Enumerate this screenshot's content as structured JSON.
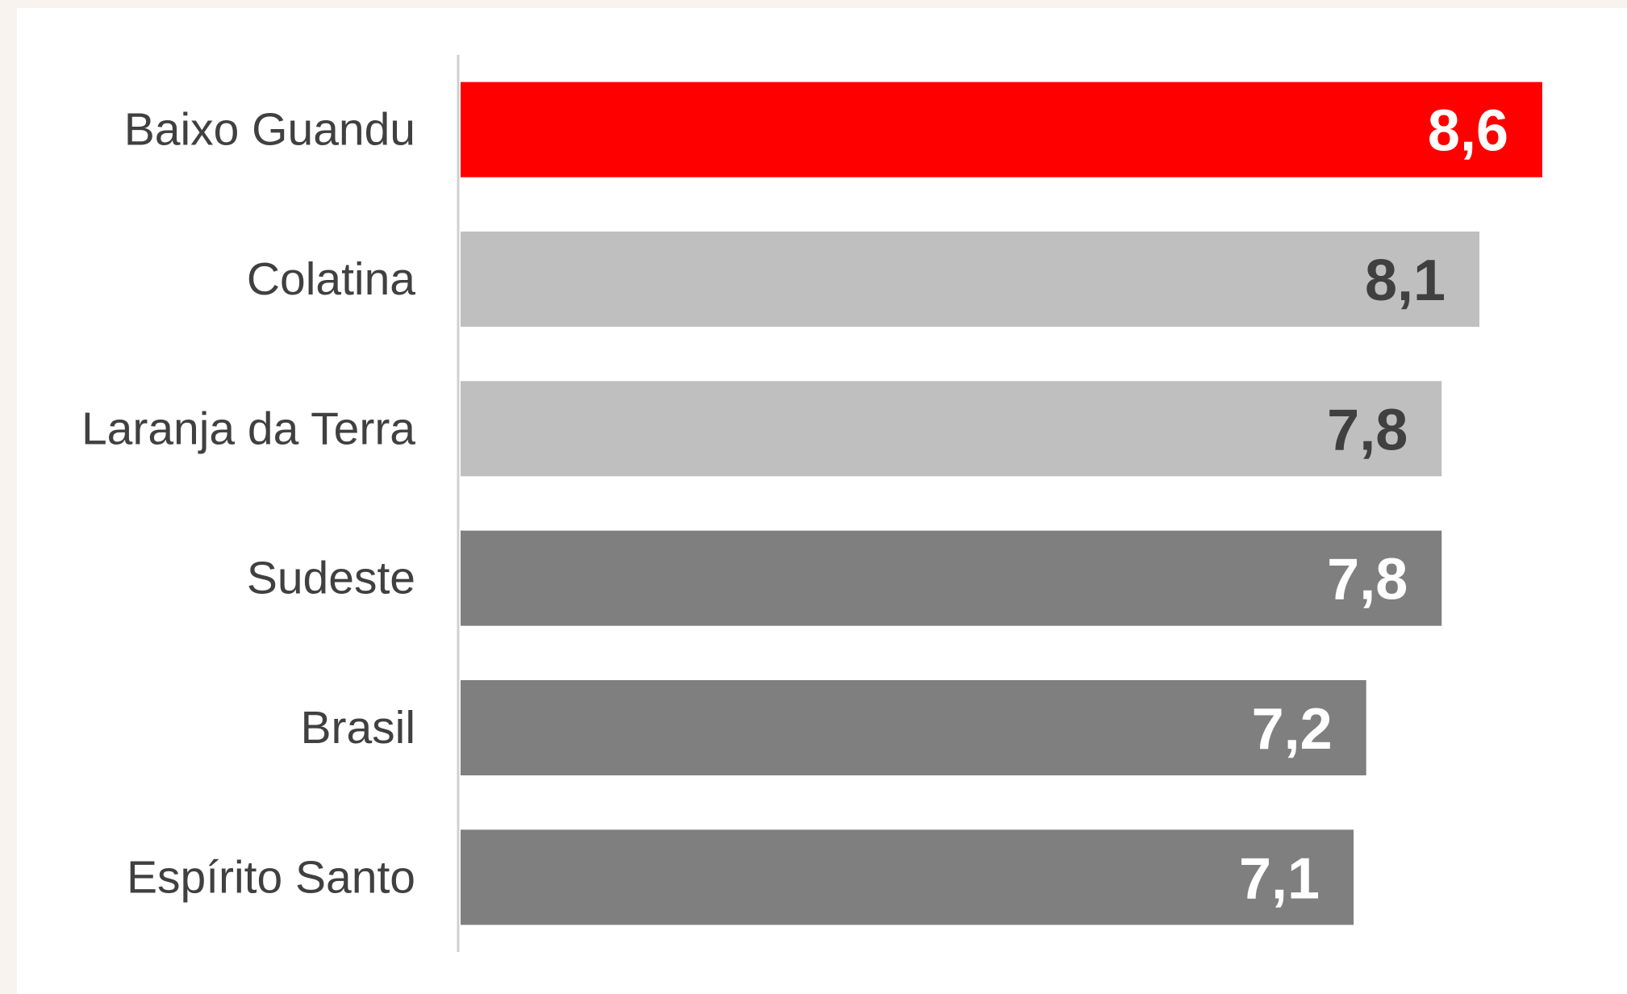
{
  "chart_data": {
    "type": "bar",
    "orientation": "horizontal",
    "categories": [
      "Baixo Guandu",
      "Colatina",
      "Laranja da Terra",
      "Sudeste",
      "Brasil",
      "Espírito Santo"
    ],
    "values": [
      8.6,
      8.1,
      7.8,
      7.8,
      7.2,
      7.1
    ],
    "value_labels": [
      "8,6",
      "8,1",
      "7,8",
      "7,8",
      "7,2",
      "7,1"
    ],
    "bar_colors": [
      "#ff0000",
      "#bfbfbf",
      "#bfbfbf",
      "#7f7f7f",
      "#7f7f7f",
      "#7f7f7f"
    ],
    "label_colors": [
      "#ffffff",
      "#404040",
      "#404040",
      "#ffffff",
      "#ffffff",
      "#ffffff"
    ],
    "title": "",
    "xlabel": "",
    "ylabel": "",
    "grid": false,
    "legend": "none"
  }
}
